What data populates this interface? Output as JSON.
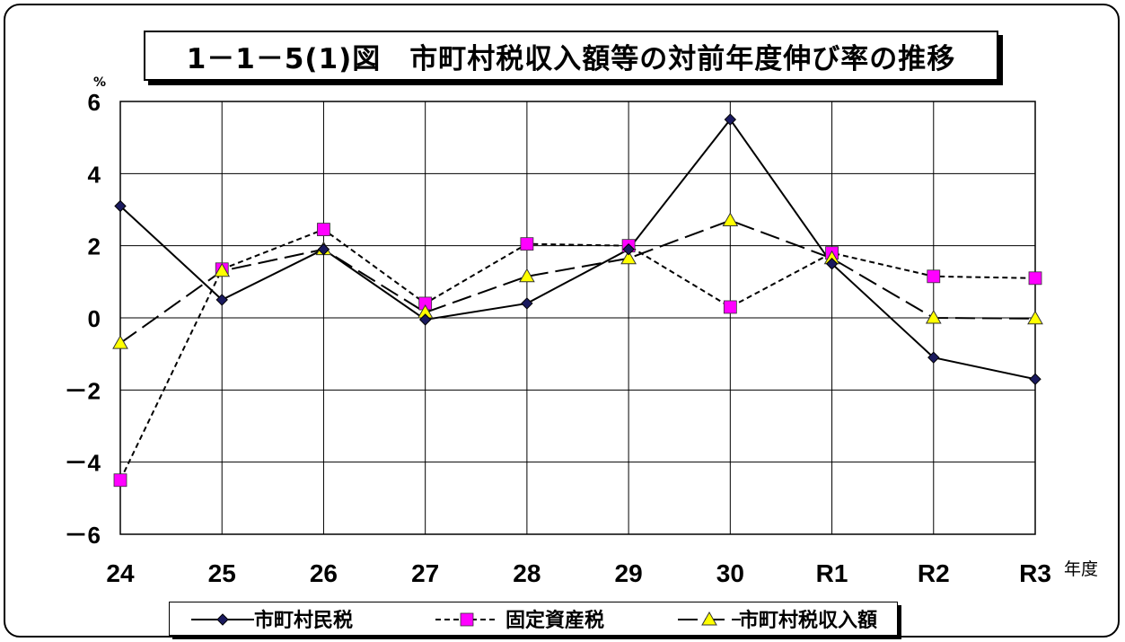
{
  "chart_data": {
    "type": "line",
    "title": "1－1－5(1)図　市町村税収入額等の対前年度伸び率の推移",
    "ylabel": "%",
    "xlabel": "年度",
    "categories": [
      "24",
      "25",
      "26",
      "27",
      "28",
      "29",
      "30",
      "R1",
      "R2",
      "R3"
    ],
    "ylim": [
      -6,
      6
    ],
    "yticks": [
      -6,
      -4,
      -2,
      0,
      2,
      4,
      6
    ],
    "ytick_labels": [
      "－6",
      "－4",
      "－2",
      "0",
      "2",
      "4",
      "6"
    ],
    "grid": true,
    "legend_position": "bottom",
    "series": [
      {
        "name": "市町村民税",
        "marker": "diamond",
        "line_style": "solid",
        "color": "#000000",
        "marker_color": "#1a1a5e",
        "values": [
          3.1,
          0.5,
          1.9,
          -0.05,
          0.4,
          1.9,
          5.5,
          1.5,
          -1.1,
          -1.7
        ]
      },
      {
        "name": "固定資産税",
        "marker": "square",
        "line_style": "dotted",
        "color": "#000000",
        "marker_color": "#ff00ff",
        "values": [
          -4.5,
          1.35,
          2.45,
          0.4,
          2.05,
          2.0,
          0.3,
          1.8,
          1.15,
          1.1
        ]
      },
      {
        "name": "市町村税収入額",
        "marker": "triangle",
        "line_style": "dashed",
        "color": "#000000",
        "marker_color": "#ffff00",
        "values": [
          -0.7,
          1.3,
          1.9,
          0.15,
          1.15,
          1.65,
          2.7,
          1.65,
          0.0,
          -0.02
        ]
      }
    ]
  }
}
